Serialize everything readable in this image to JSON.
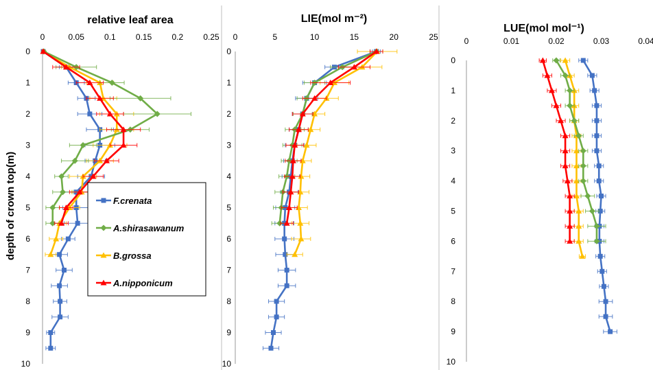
{
  "figure": {
    "ylabel": "depth of crown top(m)",
    "legend": {
      "placement": "inside left panel, lower-right",
      "entries": [
        {
          "name": "F.crenata",
          "color": "#4472C4",
          "marker": "square"
        },
        {
          "name": "A.shirasawanum",
          "color": "#70AD47",
          "marker": "diamond"
        },
        {
          "name": "B.grossa",
          "color": "#FFC000",
          "marker": "triangle"
        },
        {
          "name": "A.nipponicum",
          "color": "#FF0000",
          "marker": "triangle"
        }
      ]
    }
  },
  "chart_data": [
    {
      "type": "line",
      "title": "relative leaf area",
      "x_axis_position": "top",
      "xlim": [
        0,
        0.25
      ],
      "xticks": [
        "0",
        "0.05",
        "0.1",
        "0.15",
        "0.2",
        "0.25"
      ],
      "ylim": [
        0,
        10
      ],
      "yticks": [
        "0",
        "1",
        "2",
        "3",
        "4",
        "5",
        "6",
        "7",
        "8",
        "9",
        "10"
      ],
      "y_inverted": true,
      "series": [
        {
          "name": "F.crenata",
          "color": "#4472C4",
          "depth": [
            0,
            0.5,
            1,
            1.5,
            2,
            2.5,
            3,
            3.5,
            4,
            4.5,
            5,
            5.5,
            6,
            6.5,
            7,
            7.5,
            8,
            8.5,
            9,
            9.5
          ],
          "x": [
            0.001,
            0.035,
            0.05,
            0.065,
            0.07,
            0.085,
            0.085,
            0.078,
            0.072,
            0.05,
            0.05,
            0.052,
            0.038,
            0.025,
            0.032,
            0.025,
            0.026,
            0.026,
            0.012,
            0.012
          ],
          "err": [
            0.002,
            0.01,
            0.012,
            0.013,
            0.018,
            0.02,
            0.022,
            0.015,
            0.02,
            0.02,
            0.02,
            0.02,
            0.01,
            0.012,
            0.012,
            0.012,
            0.01,
            0.012,
            0.006,
            0.007
          ]
        },
        {
          "name": "A.shirasawanum",
          "color": "#70AD47",
          "depth": [
            0,
            0.5,
            1,
            1.5,
            2,
            2.5,
            3,
            3.5,
            4,
            4.5,
            5,
            5.5
          ],
          "x": [
            0.002,
            0.05,
            0.103,
            0.145,
            0.17,
            0.13,
            0.06,
            0.048,
            0.028,
            0.03,
            0.015,
            0.015
          ],
          "err": [
            0.002,
            0.03,
            0.018,
            0.045,
            0.05,
            0.028,
            0.02,
            0.02,
            0.01,
            0.015,
            0.01,
            0.01
          ]
        },
        {
          "name": "B.grossa",
          "color": "#FFC000",
          "depth": [
            0,
            0.5,
            1,
            1.5,
            2,
            2.5,
            3,
            3.5,
            4,
            4.5,
            5,
            5.5,
            6,
            6.5
          ],
          "x": [
            0.001,
            0.04,
            0.085,
            0.09,
            0.11,
            0.11,
            0.1,
            0.085,
            0.06,
            0.058,
            0.04,
            0.025,
            0.02,
            0.012
          ],
          "err": [
            0.002,
            0.012,
            0.02,
            0.02,
            0.025,
            0.025,
            0.025,
            0.02,
            0.02,
            0.015,
            0.015,
            0.01,
            0.01,
            0.008
          ]
        },
        {
          "name": "A.nipponicum",
          "color": "#FF0000",
          "depth": [
            0,
            0.5,
            1,
            1.5,
            2,
            2.5,
            3,
            3.5,
            4,
            4.5,
            5,
            5.5
          ],
          "x": [
            0.001,
            0.035,
            0.07,
            0.085,
            0.1,
            0.12,
            0.12,
            0.095,
            0.075,
            0.055,
            0.035,
            0.028
          ],
          "err": [
            0.002,
            0.02,
            0.02,
            0.02,
            0.02,
            0.025,
            0.02,
            0.018,
            0.015,
            0.015,
            0.01,
            0.01
          ]
        }
      ]
    },
    {
      "type": "line",
      "title": "LIE(mol m⁻²)",
      "x_axis_position": "top",
      "xlim": [
        0,
        25
      ],
      "xticks": [
        "0",
        "5",
        "10",
        "15",
        "20",
        "25"
      ],
      "ylim": [
        0,
        10
      ],
      "yticks": [
        "0",
        "1",
        "2",
        "3",
        "4",
        "5",
        "6",
        "7",
        "8",
        "9",
        "10"
      ],
      "y_inverted": true,
      "series": [
        {
          "name": "F.crenata",
          "color": "#4472C4",
          "depth": [
            0,
            0.5,
            1,
            1.5,
            2,
            2.5,
            3,
            3.5,
            4,
            4.5,
            5,
            5.5,
            6,
            6.5,
            7,
            7.5,
            8,
            8.5,
            9,
            9.5
          ],
          "x": [
            17.8,
            12.5,
            10,
            9,
            8.5,
            8,
            7.5,
            7.2,
            7,
            6.8,
            6.3,
            6.2,
            6.2,
            6.3,
            6.5,
            6.5,
            5.2,
            5.2,
            4.8,
            4.5
          ],
          "err": [
            0.5,
            1.2,
            1.5,
            1.4,
            1.3,
            1.2,
            1.2,
            1.1,
            1.1,
            1.1,
            1.2,
            1.2,
            1.2,
            1.2,
            1.1,
            1.1,
            1.0,
            1.0,
            1.0,
            1.0
          ]
        },
        {
          "name": "A.shirasawanum",
          "color": "#70AD47",
          "depth": [
            0,
            0.5,
            1,
            1.5,
            2,
            2.5,
            3,
            3.5,
            4,
            4.5,
            5,
            5.5
          ],
          "x": [
            17.8,
            13.5,
            10,
            9,
            8.5,
            7.5,
            7.2,
            6.8,
            6.5,
            6,
            5.8,
            5.6
          ],
          "err": [
            0.8,
            1.5,
            1.3,
            1.2,
            1.2,
            1.2,
            1.2,
            1.0,
            1.0,
            1.0,
            1.0,
            1.0
          ]
        },
        {
          "name": "B.grossa",
          "color": "#FFC000",
          "depth": [
            0,
            0.5,
            1,
            1.5,
            2,
            2.5,
            3,
            3.5,
            4,
            4.5,
            5,
            5.5,
            6,
            6.5
          ],
          "x": [
            17.9,
            16,
            12.5,
            11.5,
            10,
            9.5,
            9,
            8.5,
            8.3,
            8.2,
            8,
            8.2,
            8.3,
            7.5
          ],
          "err": [
            2.5,
            2.5,
            1.8,
            1.5,
            1.3,
            1.2,
            1.2,
            1.1,
            1.1,
            1.1,
            1.1,
            1.1,
            1.2,
            1.0
          ]
        },
        {
          "name": "A.nipponicum",
          "color": "#FF0000",
          "depth": [
            0,
            0.5,
            1,
            1.5,
            2,
            2.5,
            3,
            3.5,
            4,
            4.5,
            5,
            5.5
          ],
          "x": [
            17.8,
            15,
            12,
            10,
            8.5,
            8,
            7.5,
            7.3,
            7.2,
            7,
            6.8,
            6.5
          ],
          "err": [
            0.8,
            2.0,
            2.5,
            1.5,
            1.3,
            1.2,
            1.1,
            1.0,
            1.0,
            1.0,
            1.0,
            0.8
          ]
        }
      ]
    },
    {
      "type": "line",
      "title": "LUE(mol mol⁻¹)",
      "x_axis_position": "top",
      "xlim": [
        0,
        0.04
      ],
      "xticks": [
        "0",
        "0.01",
        "0.02",
        "0.03",
        "0.04"
      ],
      "ylim": [
        0,
        10
      ],
      "yticks": [
        "0",
        "1",
        "2",
        "3",
        "4",
        "5",
        "6",
        "7",
        "8",
        "9",
        "10"
      ],
      "y_inverted": true,
      "series": [
        {
          "name": "F.crenata",
          "color": "#4472C4",
          "depth": [
            0,
            0.5,
            1,
            1.5,
            2,
            2.5,
            3,
            3.5,
            4,
            4.5,
            5,
            5.5,
            6,
            6.5,
            7,
            7.5,
            8,
            8.5,
            9
          ],
          "x": [
            0.026,
            0.028,
            0.0285,
            0.029,
            0.029,
            0.029,
            0.029,
            0.0295,
            0.0295,
            0.03,
            0.0298,
            0.0296,
            0.0296,
            0.0298,
            0.0302,
            0.0306,
            0.031,
            0.031,
            0.032
          ],
          "err": [
            0.001,
            0.001,
            0.001,
            0.001,
            0.001,
            0.001,
            0.001,
            0.001,
            0.001,
            0.001,
            0.001,
            0.001,
            0.001,
            0.001,
            0.001,
            0.001,
            0.0015,
            0.0015,
            0.0015
          ]
        },
        {
          "name": "A.shirasawanum",
          "color": "#70AD47",
          "depth": [
            0,
            0.5,
            1,
            1.5,
            2,
            2.5,
            3,
            3.5,
            4,
            4.5,
            5,
            5.5,
            6
          ],
          "x": [
            0.02,
            0.022,
            0.023,
            0.023,
            0.024,
            0.025,
            0.026,
            0.026,
            0.026,
            0.027,
            0.028,
            0.029,
            0.029
          ],
          "err": [
            0.0008,
            0.001,
            0.001,
            0.001,
            0.001,
            0.001,
            0.001,
            0.001,
            0.001,
            0.0015,
            0.0015,
            0.002,
            0.002
          ]
        },
        {
          "name": "B.grossa",
          "color": "#FFC000",
          "depth": [
            0,
            0.5,
            1,
            1.5,
            2,
            2.5,
            3,
            3.5,
            4,
            4.5,
            5,
            5.5,
            6,
            6.5
          ],
          "x": [
            0.022,
            0.023,
            0.024,
            0.024,
            0.024,
            0.0245,
            0.0245,
            0.0245,
            0.0245,
            0.0245,
            0.025,
            0.025,
            0.025,
            0.0258
          ],
          "err": [
            0.001,
            0.001,
            0.001,
            0.001,
            0.001,
            0.001,
            0.001,
            0.001,
            0.001,
            0.001,
            0.001,
            0.001,
            0.001,
            0.0007
          ]
        },
        {
          "name": "A.nipponicum",
          "color": "#FF0000",
          "depth": [
            0,
            0.5,
            1,
            1.5,
            2,
            2.5,
            3,
            3.5,
            4,
            4.5,
            5,
            5.5,
            6
          ],
          "x": [
            0.017,
            0.018,
            0.019,
            0.02,
            0.021,
            0.022,
            0.022,
            0.022,
            0.0225,
            0.023,
            0.023,
            0.023,
            0.023
          ],
          "err": [
            0.0008,
            0.001,
            0.001,
            0.001,
            0.001,
            0.001,
            0.001,
            0.001,
            0.001,
            0.001,
            0.001,
            0.001,
            0.001
          ]
        }
      ]
    }
  ]
}
